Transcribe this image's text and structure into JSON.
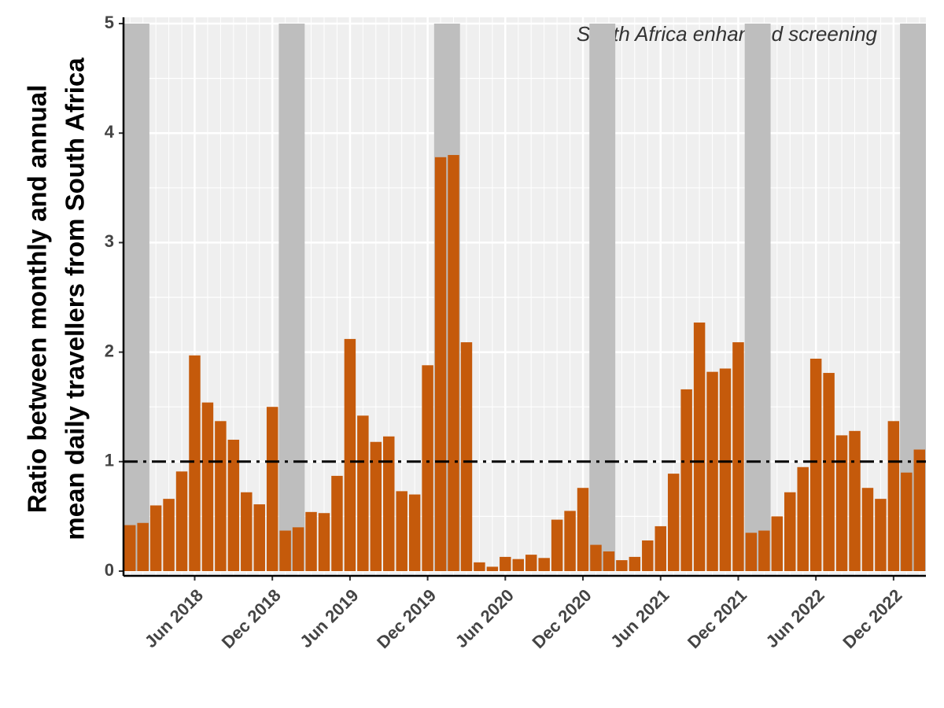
{
  "chart_data": {
    "type": "bar",
    "ylabel": [
      "Ratio between monthly and annual",
      "mean daily travellers from South Africa"
    ],
    "annotation": "South Africa enhanced screening",
    "x": [
      "Jan 2018",
      "Feb 2018",
      "Mar 2018",
      "Apr 2018",
      "May 2018",
      "Jun 2018",
      "Jul 2018",
      "Aug 2018",
      "Sep 2018",
      "Oct 2018",
      "Nov 2018",
      "Dec 2018",
      "Jan 2019",
      "Feb 2019",
      "Mar 2019",
      "Apr 2019",
      "May 2019",
      "Jun 2019",
      "Jul 2019",
      "Aug 2019",
      "Sep 2019",
      "Oct 2019",
      "Nov 2019",
      "Dec 2019",
      "Jan 2020",
      "Feb 2020",
      "Mar 2020",
      "Apr 2020",
      "May 2020",
      "Jun 2020",
      "Jul 2020",
      "Aug 2020",
      "Sep 2020",
      "Oct 2020",
      "Nov 2020",
      "Dec 2020",
      "Jan 2021",
      "Feb 2021",
      "Mar 2021",
      "Apr 2021",
      "May 2021",
      "Jun 2021",
      "Jul 2021",
      "Aug 2021",
      "Sep 2021",
      "Oct 2021",
      "Nov 2021",
      "Dec 2021",
      "Jan 2022",
      "Feb 2022",
      "Mar 2022",
      "Apr 2022",
      "May 2022",
      "Jun 2022",
      "Jul 2022",
      "Aug 2022",
      "Sep 2022",
      "Oct 2022",
      "Nov 2022",
      "Dec 2022",
      "Jan 2023",
      "Feb 2023"
    ],
    "values": [
      0.42,
      0.44,
      0.6,
      0.66,
      0.91,
      1.97,
      1.54,
      1.37,
      1.2,
      0.72,
      0.61,
      1.5,
      0.37,
      0.4,
      0.54,
      0.53,
      0.87,
      2.12,
      1.42,
      1.18,
      1.23,
      0.73,
      0.7,
      1.88,
      3.78,
      3.8,
      2.09,
      0.08,
      0.04,
      0.13,
      0.11,
      0.15,
      0.12,
      0.47,
      0.55,
      0.76,
      0.24,
      0.18,
      0.1,
      0.13,
      0.28,
      0.41,
      0.89,
      1.66,
      2.27,
      1.82,
      1.85,
      2.09,
      0.35,
      0.37,
      0.5,
      0.72,
      0.95,
      1.94,
      1.81,
      1.24,
      1.28,
      0.76,
      0.66,
      1.37,
      0.9,
      1.11
    ],
    "color": "#c55a0b",
    "shaded_bands": [
      [
        "Jan 2018",
        "Feb 2018"
      ],
      [
        "Jan 2019",
        "Feb 2019"
      ],
      [
        "Jan 2020",
        "Feb 2020"
      ],
      [
        "Jan 2021",
        "Feb 2021"
      ],
      [
        "Jan 2022",
        "Feb 2022"
      ],
      [
        "Jan 2023",
        "Feb 2023"
      ]
    ],
    "shade_color": "#bebebe",
    "reference_line": 1,
    "ylim": [
      0,
      5
    ],
    "yticks": [
      0,
      1,
      2,
      3,
      4,
      5
    ],
    "xticks": [
      "Jun 2018",
      "Dec 2018",
      "Jun 2019",
      "Dec 2019",
      "Jun 2020",
      "Dec 2020",
      "Jun 2021",
      "Dec 2021",
      "Jun 2022",
      "Dec 2022"
    ],
    "grid": true
  }
}
